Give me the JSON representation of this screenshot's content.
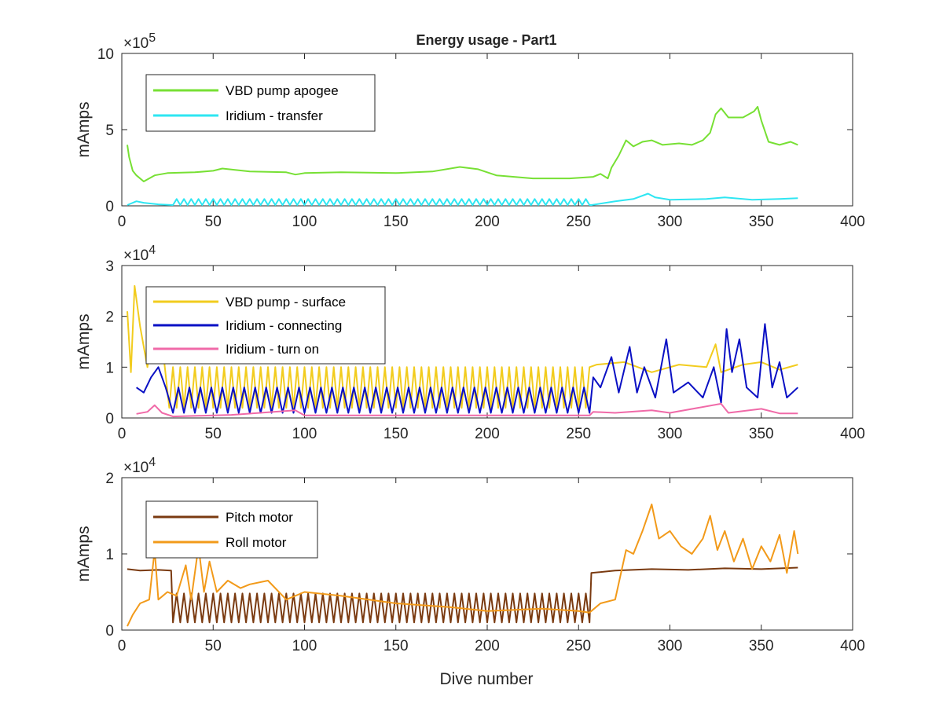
{
  "figure": {
    "title": "Energy usage - Part1",
    "xlabel": "Dive number"
  },
  "chart_data": [
    {
      "type": "line",
      "title": "Energy usage - Part1",
      "xlabel": "",
      "ylabel": "mAmps",
      "xlim": [
        0,
        400
      ],
      "ylim": [
        0,
        1000000
      ],
      "xticks": [
        "0",
        "50",
        "100",
        "150",
        "200",
        "250",
        "300",
        "350",
        "400"
      ],
      "yticks": [
        "0",
        "5",
        "10"
      ],
      "ytick_values": [
        0,
        500000,
        1000000
      ],
      "y_exponent": {
        "base": "×10",
        "power": "5"
      },
      "grid": false,
      "legend_position": "top-left",
      "series": [
        {
          "name": "VBD pump apogee",
          "color": "#77e034",
          "points": [
            [
              3,
              400000
            ],
            [
              4,
              320000
            ],
            [
              6,
              230000
            ],
            [
              8,
              200000
            ],
            [
              12,
              160000
            ],
            [
              18,
              200000
            ],
            [
              25,
              215000
            ],
            [
              40,
              220000
            ],
            [
              50,
              230000
            ],
            [
              55,
              245000
            ],
            [
              70,
              225000
            ],
            [
              90,
              220000
            ],
            [
              95,
              205000
            ],
            [
              100,
              215000
            ],
            [
              120,
              220000
            ],
            [
              150,
              215000
            ],
            [
              170,
              225000
            ],
            [
              185,
              255000
            ],
            [
              195,
              240000
            ],
            [
              205,
              200000
            ],
            [
              225,
              180000
            ],
            [
              245,
              180000
            ],
            [
              258,
              190000
            ],
            [
              262,
              210000
            ],
            [
              266,
              180000
            ],
            [
              268,
              250000
            ],
            [
              272,
              330000
            ],
            [
              276,
              430000
            ],
            [
              280,
              390000
            ],
            [
              285,
              420000
            ],
            [
              290,
              430000
            ],
            [
              296,
              400000
            ],
            [
              305,
              410000
            ],
            [
              312,
              400000
            ],
            [
              318,
              430000
            ],
            [
              322,
              480000
            ],
            [
              325,
              600000
            ],
            [
              328,
              640000
            ],
            [
              332,
              580000
            ],
            [
              340,
              580000
            ],
            [
              346,
              620000
            ],
            [
              348,
              650000
            ],
            [
              350,
              560000
            ],
            [
              354,
              420000
            ],
            [
              360,
              400000
            ],
            [
              366,
              420000
            ],
            [
              370,
              400000
            ]
          ]
        },
        {
          "name": "Iridium - transfer",
          "color": "#2ee6f2",
          "points": [
            [
              3,
              5000
            ],
            [
              8,
              30000
            ],
            [
              12,
              20000
            ],
            [
              20,
              10000
            ],
            [
              28,
              5000
            ],
            [
              60,
              10000
            ],
            [
              100,
              15000
            ],
            [
              150,
              15000
            ],
            [
              200,
              20000
            ],
            [
              250,
              10000
            ],
            [
              257,
              5000
            ],
            [
              270,
              30000
            ],
            [
              280,
              45000
            ],
            [
              288,
              80000
            ],
            [
              292,
              55000
            ],
            [
              300,
              40000
            ],
            [
              320,
              45000
            ],
            [
              330,
              55000
            ],
            [
              345,
              40000
            ],
            [
              360,
              45000
            ],
            [
              370,
              50000
            ]
          ],
          "oscillate": {
            "from": 28,
            "to": 256,
            "period": 4,
            "low": 5000,
            "high": 45000
          }
        }
      ]
    },
    {
      "type": "line",
      "title": "",
      "xlabel": "",
      "ylabel": "mAmps",
      "xlim": [
        0,
        400
      ],
      "ylim": [
        0,
        30000
      ],
      "xticks": [
        "0",
        "50",
        "100",
        "150",
        "200",
        "250",
        "300",
        "350",
        "400"
      ],
      "yticks": [
        "0",
        "1",
        "2",
        "3"
      ],
      "ytick_values": [
        0,
        10000,
        20000,
        30000
      ],
      "y_exponent": {
        "base": "×10",
        "power": "4"
      },
      "grid": false,
      "legend_position": "top-left",
      "series": [
        {
          "name": "VBD pump - surface",
          "color": "#f2cc1e",
          "points": [
            [
              3,
              21000
            ],
            [
              5,
              9000
            ],
            [
              7,
              26000
            ],
            [
              10,
              18000
            ],
            [
              14,
              10000
            ],
            [
              18,
              20000
            ],
            [
              22,
              15000
            ],
            [
              26,
              10000
            ],
            [
              256,
              10000
            ],
            [
              260,
              10500
            ],
            [
              275,
              11000
            ],
            [
              290,
              9000
            ],
            [
              305,
              10500
            ],
            [
              320,
              10000
            ],
            [
              325,
              14500
            ],
            [
              328,
              9000
            ],
            [
              340,
              10500
            ],
            [
              350,
              11000
            ],
            [
              360,
              9500
            ],
            [
              370,
              10500
            ]
          ],
          "oscillate": {
            "from": 26,
            "to": 256,
            "period": 4,
            "low": 2000,
            "high": 10000
          }
        },
        {
          "name": "Iridium - connecting",
          "color": "#0a10c4",
          "points": [
            [
              8,
              6000
            ],
            [
              12,
              5000
            ],
            [
              16,
              8000
            ],
            [
              20,
              10000
            ],
            [
              24,
              6000
            ],
            [
              28,
              3000
            ],
            [
              256,
              3000
            ],
            [
              258,
              8000
            ],
            [
              262,
              6000
            ],
            [
              268,
              12000
            ],
            [
              272,
              5000
            ],
            [
              278,
              14000
            ],
            [
              282,
              5000
            ],
            [
              286,
              10000
            ],
            [
              292,
              4000
            ],
            [
              298,
              15500
            ],
            [
              302,
              5000
            ],
            [
              310,
              7000
            ],
            [
              318,
              4000
            ],
            [
              324,
              10000
            ],
            [
              328,
              3000
            ],
            [
              331,
              17500
            ],
            [
              334,
              9000
            ],
            [
              338,
              15500
            ],
            [
              342,
              6000
            ],
            [
              348,
              4000
            ],
            [
              352,
              18500
            ],
            [
              356,
              6000
            ],
            [
              360,
              11000
            ],
            [
              364,
              4000
            ],
            [
              370,
              6000
            ]
          ],
          "oscillate": {
            "from": 28,
            "to": 256,
            "period": 6,
            "low": 1000,
            "high": 6000
          }
        },
        {
          "name": "Iridium - turn on",
          "color": "#f06aa8",
          "points": [
            [
              8,
              800
            ],
            [
              14,
              1200
            ],
            [
              18,
              2500
            ],
            [
              22,
              1000
            ],
            [
              28,
              300
            ],
            [
              60,
              600
            ],
            [
              95,
              1500
            ],
            [
              100,
              500
            ],
            [
              150,
              500
            ],
            [
              200,
              500
            ],
            [
              256,
              500
            ],
            [
              258,
              1200
            ],
            [
              270,
              1000
            ],
            [
              290,
              1500
            ],
            [
              300,
              1000
            ],
            [
              328,
              2800
            ],
            [
              332,
              1000
            ],
            [
              350,
              1800
            ],
            [
              360,
              900
            ],
            [
              370,
              900
            ]
          ]
        }
      ]
    },
    {
      "type": "line",
      "title": "",
      "xlabel": "Dive number",
      "ylabel": "mAmps",
      "xlim": [
        0,
        400
      ],
      "ylim": [
        0,
        20000
      ],
      "xticks": [
        "0",
        "50",
        "100",
        "150",
        "200",
        "250",
        "300",
        "350",
        "400"
      ],
      "yticks": [
        "0",
        "1",
        "2"
      ],
      "ytick_values": [
        0,
        10000,
        20000
      ],
      "y_exponent": {
        "base": "×10",
        "power": "4"
      },
      "grid": false,
      "legend_position": "top-left",
      "series": [
        {
          "name": "Pitch motor",
          "color": "#7a3a10",
          "points": [
            [
              3,
              8000
            ],
            [
              10,
              7800
            ],
            [
              20,
              7900
            ],
            [
              27,
              7800
            ],
            [
              28,
              2000
            ],
            [
              256,
              2000
            ],
            [
              257,
              7500
            ],
            [
              270,
              7800
            ],
            [
              290,
              8000
            ],
            [
              310,
              7900
            ],
            [
              330,
              8100
            ],
            [
              350,
              8000
            ],
            [
              370,
              8200
            ]
          ],
          "oscillate": {
            "from": 28,
            "to": 256,
            "period": 4,
            "low": 1000,
            "high": 4800
          }
        },
        {
          "name": "Roll motor",
          "color": "#f29a1a",
          "points": [
            [
              3,
              500
            ],
            [
              6,
              2000
            ],
            [
              10,
              3500
            ],
            [
              15,
              4000
            ],
            [
              18,
              10500
            ],
            [
              20,
              4000
            ],
            [
              25,
              5000
            ],
            [
              30,
              4500
            ],
            [
              35,
              8500
            ],
            [
              38,
              4000
            ],
            [
              42,
              11000
            ],
            [
              45,
              5000
            ],
            [
              48,
              9000
            ],
            [
              52,
              5000
            ],
            [
              58,
              6500
            ],
            [
              65,
              5500
            ],
            [
              70,
              6000
            ],
            [
              80,
              6500
            ],
            [
              90,
              4000
            ],
            [
              100,
              5000
            ],
            [
              120,
              4500
            ],
            [
              150,
              3500
            ],
            [
              180,
              3000
            ],
            [
              200,
              2500
            ],
            [
              230,
              2800
            ],
            [
              250,
              2500
            ],
            [
              256,
              2300
            ],
            [
              262,
              3500
            ],
            [
              270,
              4000
            ],
            [
              276,
              10500
            ],
            [
              280,
              10000
            ],
            [
              285,
              13000
            ],
            [
              290,
              16500
            ],
            [
              294,
              12000
            ],
            [
              300,
              13000
            ],
            [
              306,
              11000
            ],
            [
              312,
              10000
            ],
            [
              318,
              12000
            ],
            [
              322,
              15000
            ],
            [
              326,
              10500
            ],
            [
              330,
              13000
            ],
            [
              335,
              9000
            ],
            [
              340,
              12000
            ],
            [
              345,
              8000
            ],
            [
              350,
              11000
            ],
            [
              355,
              9000
            ],
            [
              360,
              12500
            ],
            [
              364,
              7500
            ],
            [
              368,
              13000
            ],
            [
              370,
              10000
            ]
          ]
        }
      ]
    }
  ]
}
